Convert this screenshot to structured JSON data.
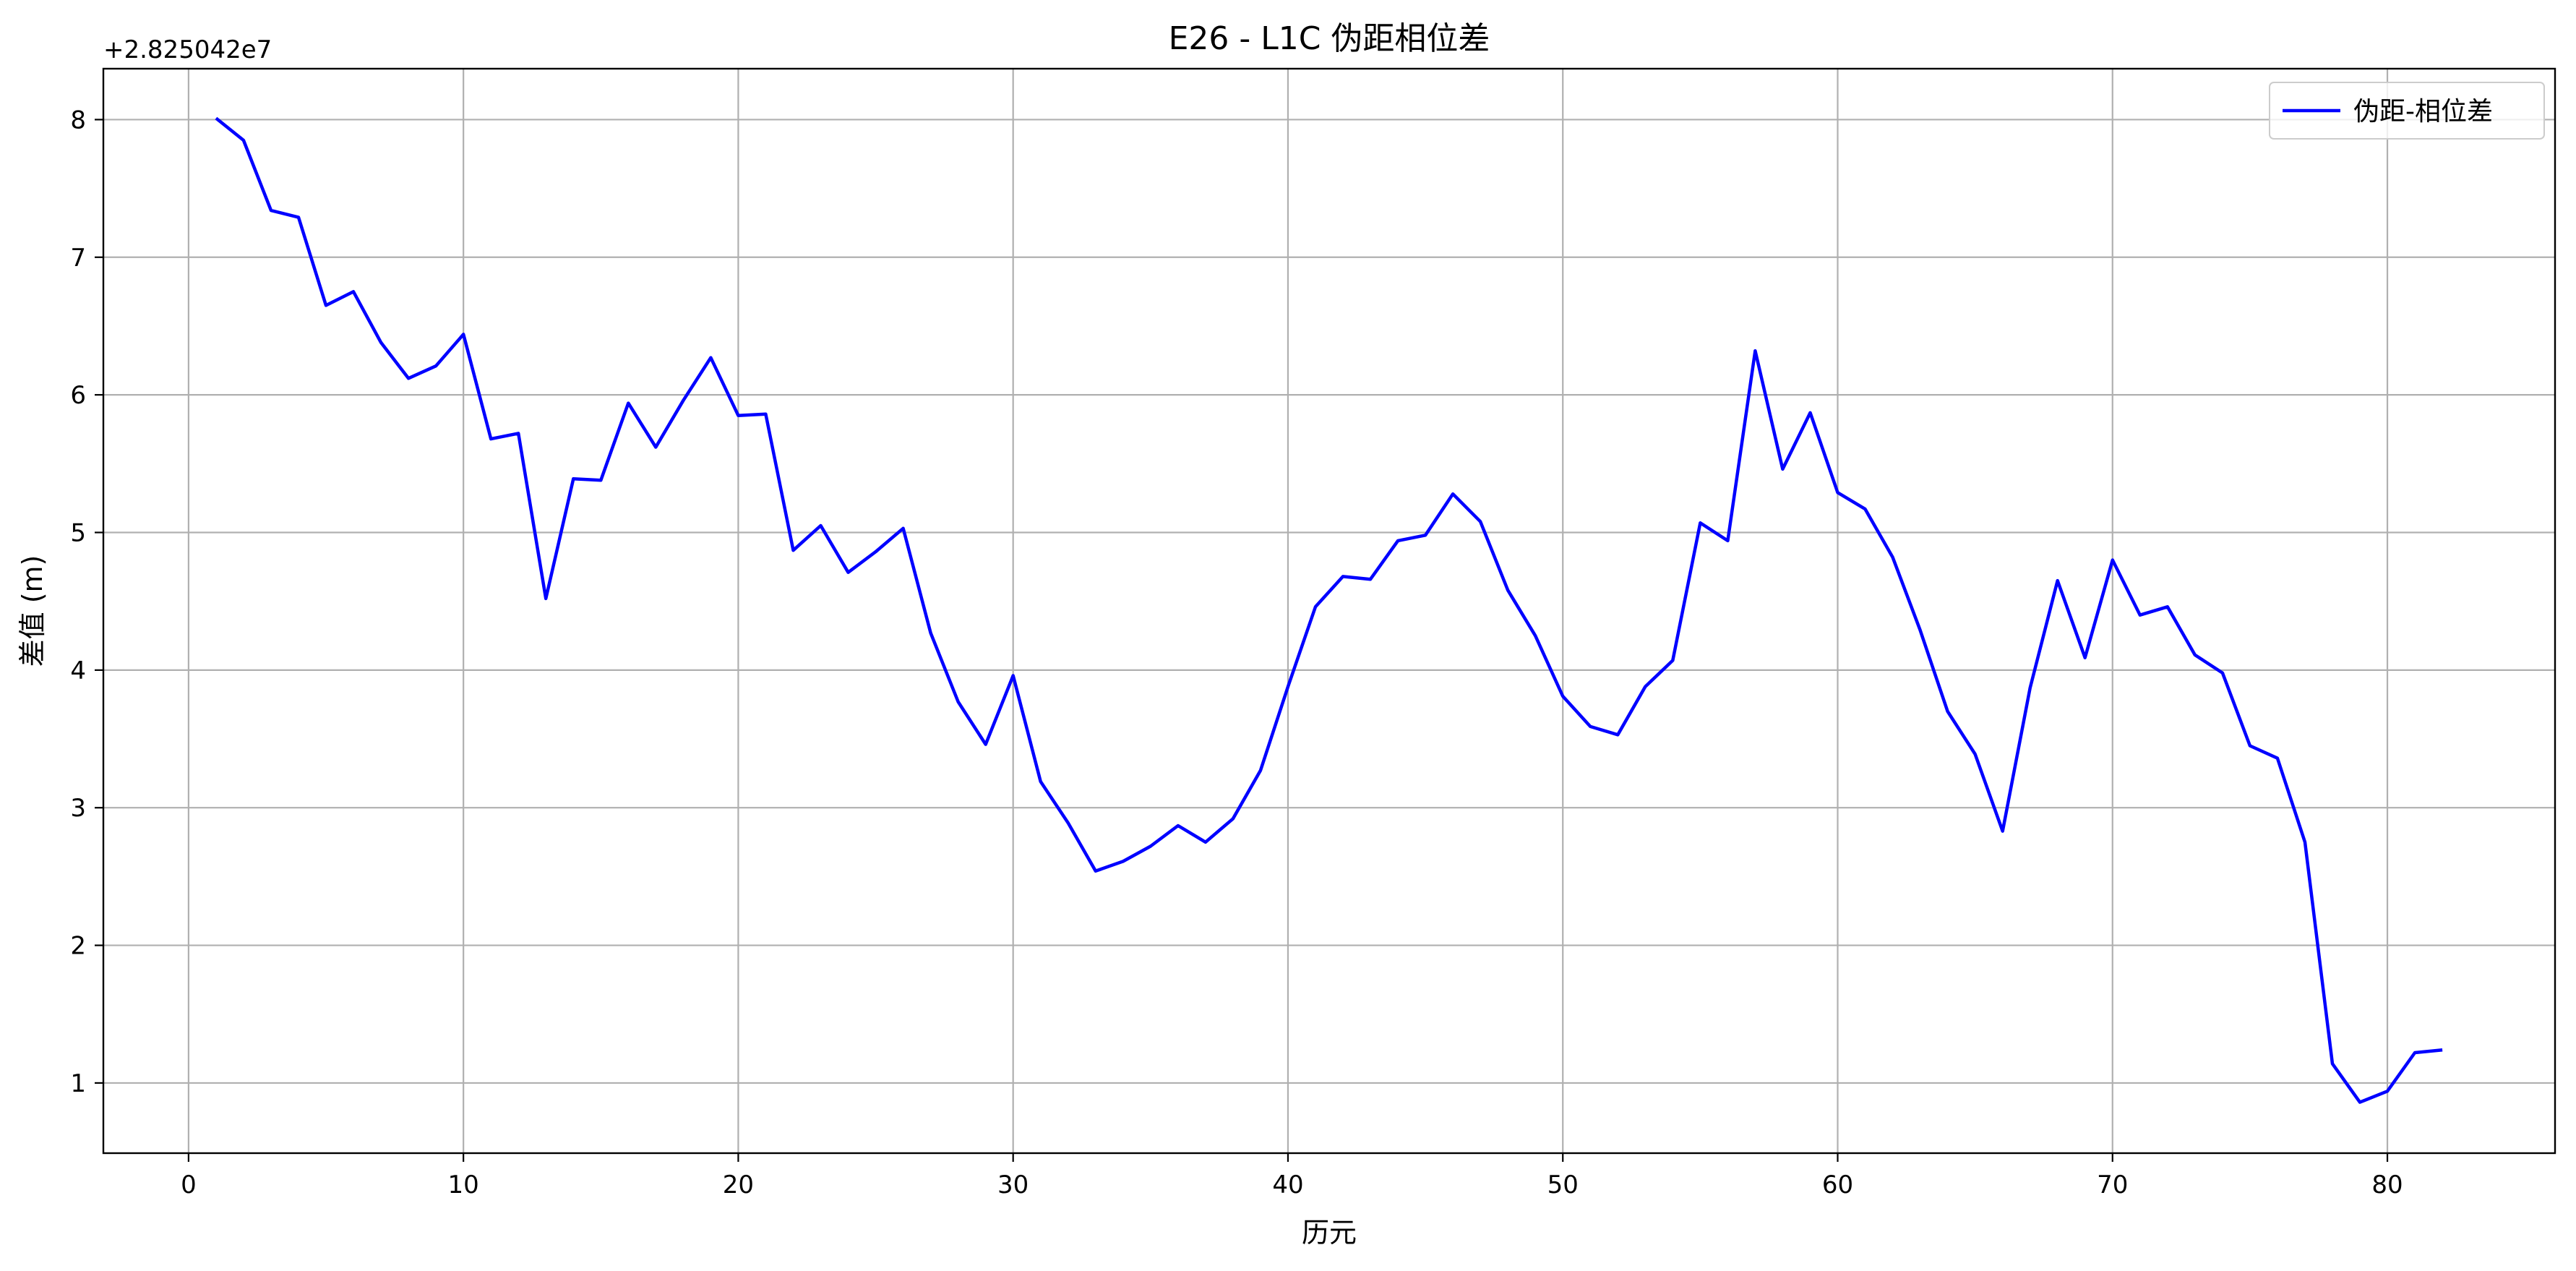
{
  "chart_data": {
    "type": "line",
    "title": "E26 - L1C 伪距相位差",
    "xlabel": "历元",
    "ylabel": "差值 (m)",
    "y_offset_label": "+2.825042e7",
    "xlim": [
      -3.1,
      86.1
    ],
    "ylim": [
      0.49,
      8.37
    ],
    "xticks": [
      0,
      10,
      20,
      30,
      40,
      50,
      60,
      70,
      80
    ],
    "yticks": [
      1,
      2,
      3,
      4,
      5,
      6,
      7,
      8
    ],
    "grid": true,
    "legend_position": "top-right",
    "series": [
      {
        "name": "伪距-相位差",
        "color": "#0000ff",
        "x": [
          1,
          2,
          3,
          4,
          5,
          6,
          7,
          8,
          9,
          10,
          11,
          12,
          13,
          14,
          15,
          16,
          17,
          18,
          19,
          20,
          21,
          22,
          23,
          24,
          25,
          26,
          27,
          28,
          29,
          30,
          31,
          32,
          33,
          34,
          35,
          36,
          37,
          38,
          39,
          40,
          41,
          42,
          43,
          44,
          45,
          46,
          47,
          48,
          49,
          50,
          51,
          52,
          53,
          54,
          55,
          56,
          57,
          58,
          59,
          60,
          61,
          62,
          63,
          64,
          65,
          66,
          67,
          68,
          69,
          70,
          71,
          72,
          73,
          74,
          75,
          76,
          77,
          78,
          79,
          80,
          81,
          82
        ],
        "values": [
          8.01,
          7.85,
          7.34,
          7.29,
          6.65,
          6.75,
          6.38,
          6.12,
          6.21,
          6.44,
          5.68,
          5.72,
          4.52,
          5.39,
          5.38,
          5.94,
          5.62,
          5.96,
          6.27,
          5.85,
          5.86,
          4.87,
          5.05,
          4.71,
          4.86,
          5.03,
          4.27,
          3.77,
          3.46,
          3.96,
          3.19,
          2.89,
          2.54,
          2.61,
          2.72,
          2.87,
          2.75,
          2.92,
          3.27,
          3.88,
          4.46,
          4.68,
          4.66,
          4.94,
          4.98,
          5.28,
          5.08,
          4.58,
          4.25,
          3.81,
          3.59,
          3.53,
          3.88,
          4.07,
          5.07,
          4.94,
          6.32,
          5.46,
          5.87,
          5.29,
          5.17,
          4.82,
          4.29,
          3.7,
          3.39,
          2.83,
          3.87,
          4.65,
          4.09,
          4.8,
          4.4,
          4.46,
          4.11,
          3.98,
          3.45,
          3.36,
          2.75,
          1.14,
          0.86,
          0.94,
          1.22,
          1.24
        ]
      }
    ]
  }
}
